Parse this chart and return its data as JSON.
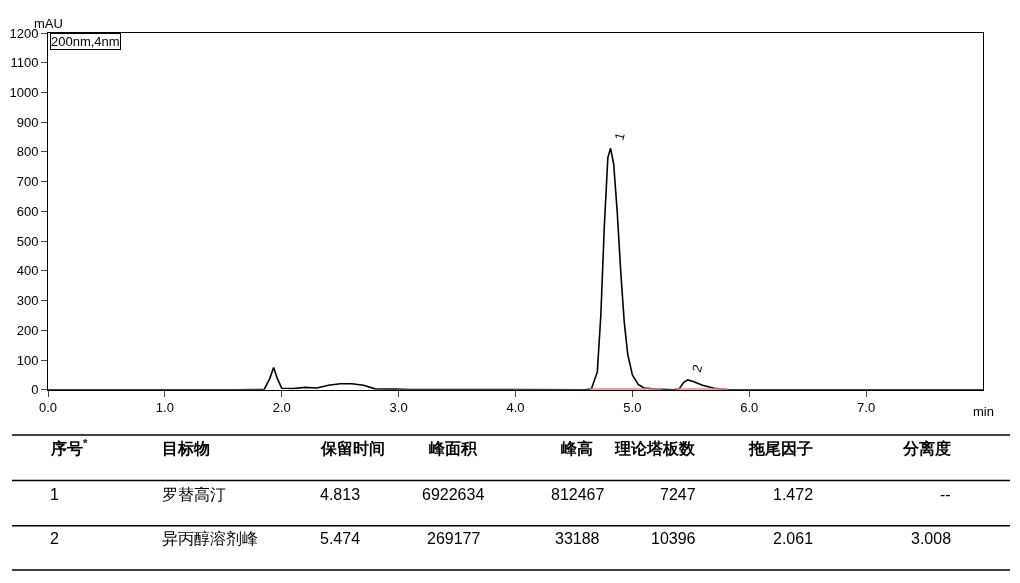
{
  "chart_data": [
    {
      "type": "line",
      "xlabel": "min",
      "ylabel": "mAU",
      "xlim": [
        0,
        8.0
      ],
      "ylim": [
        0,
        1200
      ],
      "xticks": [
        {
          "value": 0,
          "label": "0.0"
        },
        {
          "value": 1,
          "label": "1.0"
        },
        {
          "value": 2,
          "label": "2.0"
        },
        {
          "value": 3,
          "label": "3.0"
        },
        {
          "value": 4,
          "label": "4.0"
        },
        {
          "value": 5,
          "label": "5.0"
        },
        {
          "value": 6,
          "label": "6.0"
        },
        {
          "value": 7,
          "label": "7.0"
        }
      ],
      "yticks": [
        0,
        100,
        200,
        300,
        400,
        500,
        600,
        700,
        800,
        900,
        1000,
        1100,
        1200
      ],
      "marker": "none",
      "line_style": "solid",
      "series": [
        {
          "color": "#000000",
          "x": [
            0,
            1.6,
            1.85,
            1.9,
            1.93,
            1.96,
            2.0,
            2.1,
            2.2,
            2.3,
            2.4,
            2.5,
            2.6,
            2.7,
            2.8,
            2.95,
            3.1,
            4.6,
            4.65,
            4.7,
            4.73,
            4.76,
            4.79,
            4.813,
            4.84,
            4.87,
            4.9,
            4.93,
            4.96,
            5.0,
            5.05,
            5.1,
            5.2,
            5.35,
            5.4,
            5.44,
            5.474,
            5.52,
            5.6,
            5.7,
            5.8,
            5.9,
            8.0
          ],
          "values": [
            0,
            0,
            1,
            40,
            75,
            40,
            5,
            4,
            8,
            6,
            15,
            20,
            20,
            15,
            3,
            2,
            1,
            0,
            3,
            60,
            250,
            550,
            780,
            812,
            760,
            600,
            400,
            230,
            120,
            50,
            18,
            6,
            2,
            0,
            3,
            25,
            33,
            28,
            15,
            5,
            1,
            0,
            0
          ]
        },
        {
          "color": "#f08080",
          "x": [
            4.63,
            5.25
          ],
          "values": [
            0,
            0
          ]
        },
        {
          "color": "#f08080",
          "x": [
            5.37,
            5.82
          ],
          "values": [
            0,
            0
          ]
        }
      ],
      "annotations": [
        "200nm,4nm",
        {
          "text": "1",
          "x": 4.813,
          "y": 812
        },
        {
          "text": "2",
          "x": 5.474,
          "y": 33
        }
      ]
    },
    {
      "type": "other",
      "categories": [
        "序号$^{*}$",
        "目标物",
        "保留时间",
        "峰面积",
        "峰高",
        "理论塔板数",
        "拖尾因子",
        "分离度"
      ],
      "annotations": [
        "1",
        "罗替高汀",
        "4.813",
        "6922634",
        "812467",
        "7247",
        "1.472",
        "--",
        "2",
        "异丙醇溶剂峰",
        "5.474",
        "269177",
        "33188",
        "10396",
        "2.061",
        "3.008"
      ]
    }
  ]
}
